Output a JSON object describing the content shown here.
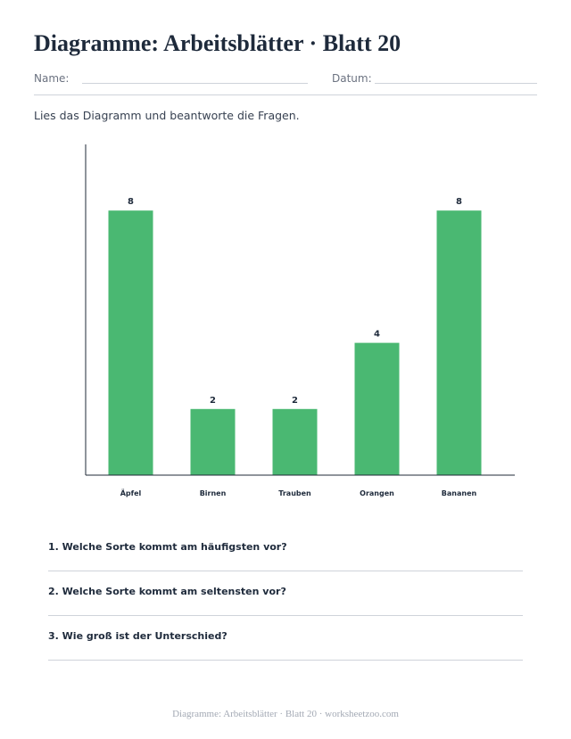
{
  "header": {
    "title": "Diagramme: Arbeitsblätter · Blatt 20",
    "name_label": "Name:",
    "date_label": "Datum:"
  },
  "instructions": "Lies das Diagramm und beantworte die Fragen.",
  "chart_data": {
    "type": "bar",
    "categories": [
      "Äpfel",
      "Birnen",
      "Trauben",
      "Orangen",
      "Bananen"
    ],
    "values": [
      8,
      2,
      2,
      4,
      8
    ],
    "ylim": [
      0,
      10
    ],
    "grid": false,
    "data_labels": true,
    "bar_color": "#4ab872"
  },
  "questions": [
    "1. Welche Sorte kommt am häufigsten vor?",
    "2. Welche Sorte kommt am seltensten vor?",
    "3. Wie groß ist der Unterschied?"
  ],
  "footer": "Diagramme: Arbeitsblätter · Blatt 20 · worksheetzoo.com"
}
